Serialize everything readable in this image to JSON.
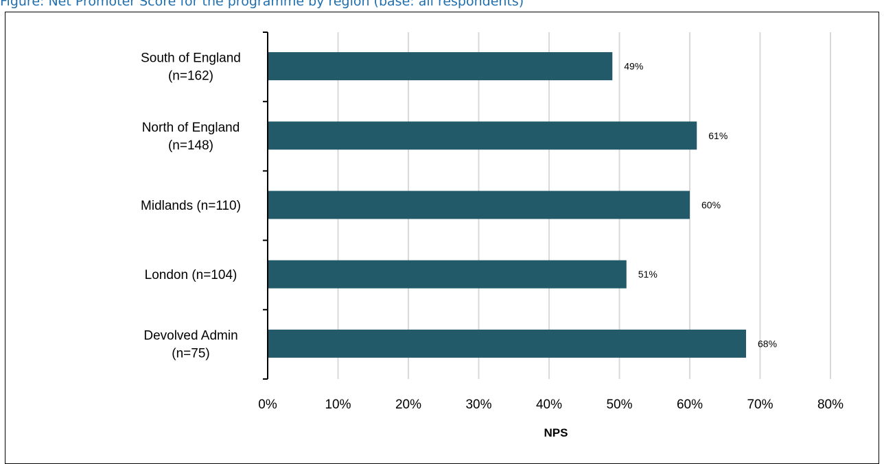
{
  "figure": {
    "caption": "Figure: Net Promoter Score for the programme by region (base: all respondents)"
  },
  "chart_data": {
    "type": "bar",
    "orientation": "horizontal",
    "categories": [
      [
        "South of England",
        "(n=162)"
      ],
      [
        "North of England",
        "(n=148)"
      ],
      [
        "Midlands (n=110)"
      ],
      [
        "London (n=104)"
      ],
      [
        "Devolved Admin",
        "(n=75)"
      ]
    ],
    "values": [
      49,
      61,
      60,
      51,
      68
    ],
    "data_labels": [
      "49%",
      "61%",
      "60%",
      "51%",
      "68%"
    ],
    "xlabel": "NPS",
    "xlim": [
      0,
      80
    ],
    "xticks": [
      0,
      10,
      20,
      30,
      40,
      50,
      60,
      70,
      80
    ],
    "xtick_labels": [
      "0%",
      "10%",
      "20%",
      "30%",
      "40%",
      "50%",
      "60%",
      "70%",
      "80%"
    ],
    "grid": "vertical",
    "bar_color": "#225a69",
    "grid_color": "#d9d9d9"
  }
}
